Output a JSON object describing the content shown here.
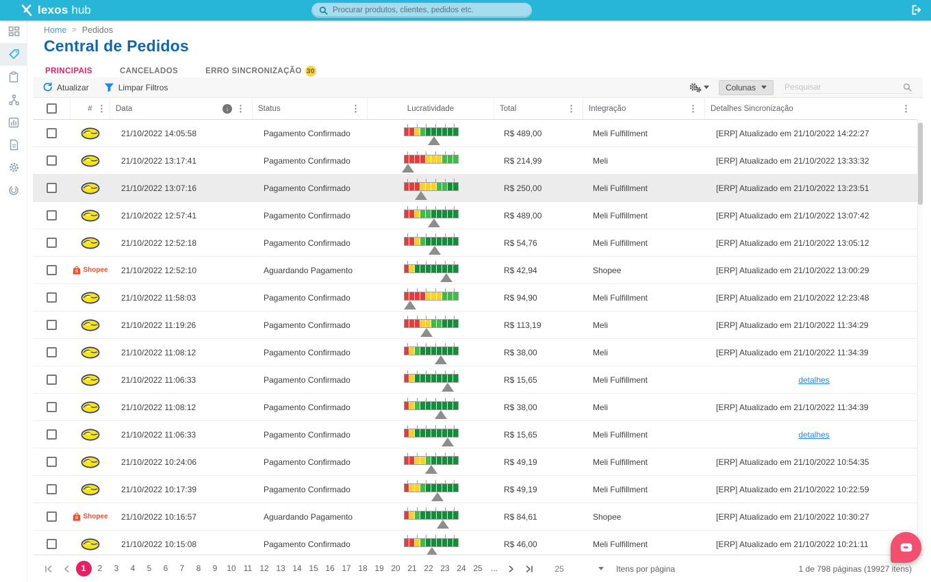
{
  "topbar": {
    "brand_primary": "lexos",
    "brand_secondary": "hub",
    "search_placeholder": "Procurar produtos, clientes, pedidos etc."
  },
  "breadcrumb": {
    "home": "Home",
    "separator": ">",
    "current": "Pedidos"
  },
  "page": {
    "title": "Central de Pedidos"
  },
  "tabs": [
    {
      "label": "PRINCIPAIS",
      "active": true
    },
    {
      "label": "CANCELADOS",
      "active": false
    },
    {
      "label": "ERRO SINCRONIZAÇÃO",
      "badge": "30",
      "active": false
    }
  ],
  "toolbar": {
    "refresh_label": "Atualizar",
    "clear_filters_label": "Limpar Filtros",
    "columns_label": "Colunas",
    "search_placeholder": "Pesquisar"
  },
  "table": {
    "headers": {
      "num": "#",
      "date": "Data",
      "status": "Status",
      "profit": "Lucratividade",
      "total": "Total",
      "integration": "Integração",
      "sync": "Detalhes Sincronização"
    },
    "sort_icon": "↓",
    "rows": [
      {
        "marketplace": "meli",
        "marketplace_label": "",
        "date": "21/10/2022 14:05:58",
        "status": "Pagamento Confirmado",
        "total": "R$ 489,00",
        "integration": "Meli Fulfillment",
        "sync": "[ERP] Atualizado em 21/10/2022 14:22:27",
        "sync_link": false,
        "highlighted": false,
        "profit": {
          "segments": [
            "r",
            "r",
            "y",
            "g",
            "G",
            "G",
            "G",
            "G",
            "G",
            "G"
          ],
          "marker": 55
        }
      },
      {
        "marketplace": "meli",
        "marketplace_label": "",
        "date": "21/10/2022 13:17:41",
        "status": "Pagamento Confirmado",
        "total": "R$ 214,99",
        "integration": "Meli",
        "sync": "[ERP] Atualizado em 21/10/2022 13:33:32",
        "sync_link": false,
        "highlighted": false,
        "profit": {
          "segments": [
            "r",
            "r",
            "r",
            "r",
            "y",
            "y",
            "y",
            "g",
            "g",
            "g"
          ],
          "marker": 8
        }
      },
      {
        "marketplace": "meli",
        "marketplace_label": "",
        "date": "21/10/2022 13:07:16",
        "status": "Pagamento Confirmado",
        "total": "R$ 250,00",
        "integration": "Meli Fulfillment",
        "sync": "[ERP] Atualizado em 21/10/2022 13:23:51",
        "sync_link": false,
        "highlighted": true,
        "profit": {
          "segments": [
            "r",
            "r",
            "r",
            "y",
            "y",
            "y",
            "g",
            "g",
            "G",
            "G"
          ],
          "marker": 32
        }
      },
      {
        "marketplace": "meli",
        "marketplace_label": "",
        "date": "21/10/2022 12:57:41",
        "status": "Pagamento Confirmado",
        "total": "R$ 489,00",
        "integration": "Meli Fulfillment",
        "sync": "[ERP] Atualizado em 21/10/2022 13:07:42",
        "sync_link": false,
        "highlighted": false,
        "profit": {
          "segments": [
            "r",
            "r",
            "y",
            "g",
            "g",
            "G",
            "G",
            "G",
            "G",
            "G"
          ],
          "marker": 55
        }
      },
      {
        "marketplace": "meli",
        "marketplace_label": "",
        "date": "21/10/2022 12:52:18",
        "status": "Pagamento Confirmado",
        "total": "R$ 54,76",
        "integration": "Meli Fulfillment",
        "sync": "[ERP] Atualizado em 21/10/2022 13:05:12",
        "sync_link": false,
        "highlighted": false,
        "profit": {
          "segments": [
            "r",
            "r",
            "y",
            "g",
            "G",
            "G",
            "G",
            "G",
            "G",
            "G"
          ],
          "marker": 57
        }
      },
      {
        "marketplace": "shopee",
        "marketplace_label": "Shopee",
        "date": "21/10/2022 12:52:10",
        "status": "Aguardando Pagamento",
        "total": "R$ 42,94",
        "integration": "Shopee",
        "sync": "[ERP] Atualizado em 21/10/2022 13:00:29",
        "sync_link": false,
        "highlighted": false,
        "profit": {
          "segments": [
            "r",
            "y",
            "G",
            "G",
            "G",
            "G",
            "G",
            "G",
            "G",
            "G"
          ],
          "marker": 78
        }
      },
      {
        "marketplace": "meli",
        "marketplace_label": "",
        "date": "21/10/2022 11:58:03",
        "status": "Pagamento Confirmado",
        "total": "R$ 94,90",
        "integration": "Meli Fulfillment",
        "sync": "[ERP] Atualizado em 21/10/2022 12:23:48",
        "sync_link": false,
        "highlighted": false,
        "profit": {
          "segments": [
            "r",
            "r",
            "r",
            "r",
            "y",
            "y",
            "y",
            "g",
            "g",
            "g"
          ],
          "marker": 12
        }
      },
      {
        "marketplace": "meli",
        "marketplace_label": "",
        "date": "21/10/2022 11:19:26",
        "status": "Pagamento Confirmado",
        "total": "R$ 113,19",
        "integration": "Meli",
        "sync": "[ERP] Atualizado em 21/10/2022 11:34:29",
        "sync_link": false,
        "highlighted": false,
        "profit": {
          "segments": [
            "r",
            "r",
            "r",
            "y",
            "y",
            "g",
            "g",
            "G",
            "G",
            "G"
          ],
          "marker": 42
        }
      },
      {
        "marketplace": "meli",
        "marketplace_label": "",
        "date": "21/10/2022 11:08:12",
        "status": "Pagamento Confirmado",
        "total": "R$ 38,00",
        "integration": "Meli",
        "sync": "[ERP] Atualizado em 21/10/2022 11:34:39",
        "sync_link": false,
        "highlighted": false,
        "profit": {
          "segments": [
            "r",
            "y",
            "g",
            "G",
            "G",
            "G",
            "G",
            "G",
            "G",
            "G"
          ],
          "marker": 68
        }
      },
      {
        "marketplace": "meli",
        "marketplace_label": "",
        "date": "21/10/2022 11:06:33",
        "status": "Pagamento Confirmado",
        "total": "R$ 15,65",
        "integration": "Meli Fulfillment",
        "sync": "detalhes",
        "sync_link": true,
        "highlighted": false,
        "profit": {
          "segments": [
            "r",
            "y",
            "G",
            "G",
            "G",
            "G",
            "G",
            "G",
            "G",
            "G"
          ],
          "marker": 80
        }
      },
      {
        "marketplace": "meli",
        "marketplace_label": "",
        "date": "21/10/2022 11:08:12",
        "status": "Pagamento Confirmado",
        "total": "R$ 38,00",
        "integration": "Meli",
        "sync": "[ERP] Atualizado em 21/10/2022 11:34:39",
        "sync_link": false,
        "highlighted": false,
        "profit": {
          "segments": [
            "r",
            "y",
            "g",
            "G",
            "G",
            "G",
            "G",
            "G",
            "G",
            "G"
          ],
          "marker": 68
        }
      },
      {
        "marketplace": "meli",
        "marketplace_label": "",
        "date": "21/10/2022 11:06:33",
        "status": "Pagamento Confirmado",
        "total": "R$ 15,65",
        "integration": "Meli Fulfillment",
        "sync": "detalhes",
        "sync_link": true,
        "highlighted": false,
        "profit": {
          "segments": [
            "r",
            "y",
            "G",
            "G",
            "G",
            "G",
            "G",
            "G",
            "G",
            "G"
          ],
          "marker": 80
        }
      },
      {
        "marketplace": "meli",
        "marketplace_label": "",
        "date": "21/10/2022 10:24:06",
        "status": "Pagamento Confirmado",
        "total": "R$ 49,19",
        "integration": "Meli Fulfillment",
        "sync": "[ERP] Atualizado em 21/10/2022 10:54:35",
        "sync_link": false,
        "highlighted": false,
        "profit": {
          "segments": [
            "r",
            "r",
            "y",
            "y",
            "g",
            "G",
            "G",
            "G",
            "G",
            "G"
          ],
          "marker": 50
        }
      },
      {
        "marketplace": "meli",
        "marketplace_label": "",
        "date": "21/10/2022 10:17:39",
        "status": "Pagamento Confirmado",
        "total": "R$ 49,19",
        "integration": "Meli Fulfillment",
        "sync": "[ERP] Atualizado em 21/10/2022 10:22:59",
        "sync_link": false,
        "highlighted": false,
        "profit": {
          "segments": [
            "r",
            "y",
            "y",
            "g",
            "G",
            "G",
            "G",
            "G",
            "G",
            "G"
          ],
          "marker": 62
        }
      },
      {
        "marketplace": "shopee",
        "marketplace_label": "Shopee",
        "date": "21/10/2022 10:16:57",
        "status": "Aguardando Pagamento",
        "total": "R$ 84,61",
        "integration": "Shopee",
        "sync": "[ERP] Atualizado em 21/10/2022 10:30:27",
        "sync_link": false,
        "highlighted": false,
        "profit": {
          "segments": [
            "r",
            "y",
            "g",
            "G",
            "G",
            "G",
            "G",
            "G",
            "G",
            "G"
          ],
          "marker": 72
        }
      },
      {
        "marketplace": "meli",
        "marketplace_label": "",
        "date": "21/10/2022 10:15:08",
        "status": "Pagamento Confirmado",
        "total": "R$ 46,00",
        "integration": "Meli Fulfillment",
        "sync": "[ERP] Atualizado em 21/10/2022 10:21:11",
        "sync_link": false,
        "highlighted": false,
        "profit": {
          "segments": [
            "r",
            "r",
            "y",
            "g",
            "G",
            "G",
            "G",
            "G",
            "G",
            "G"
          ],
          "marker": 52
        }
      }
    ]
  },
  "pagination": {
    "pages": [
      "1",
      "2",
      "3",
      "4",
      "5",
      "6",
      "7",
      "8",
      "9",
      "10",
      "11",
      "12",
      "13",
      "14",
      "15",
      "16",
      "17",
      "18",
      "19",
      "20",
      "21",
      "22",
      "23",
      "24",
      "25",
      "..."
    ],
    "active_page": "1",
    "page_size": "25",
    "items_per_page_label": "Itens por página",
    "summary": "1 de 798 páginas (19927 itens)"
  },
  "colors": {
    "topbar_cyan": "#28b6d8",
    "title_blue": "#1266b1",
    "accent_pink": "#e91e63",
    "badge_yellow": "#fcd24b",
    "link_blue": "#1e88e5",
    "shopee_orange": "#ee4d2d",
    "meli_yellow": "#ffe600",
    "bar_red": "#e53b3b",
    "bar_yellow": "#fdd032",
    "bar_green": "#43b84d",
    "bar_dark_green": "#188a3c",
    "chat_pink": "#f2506e"
  }
}
